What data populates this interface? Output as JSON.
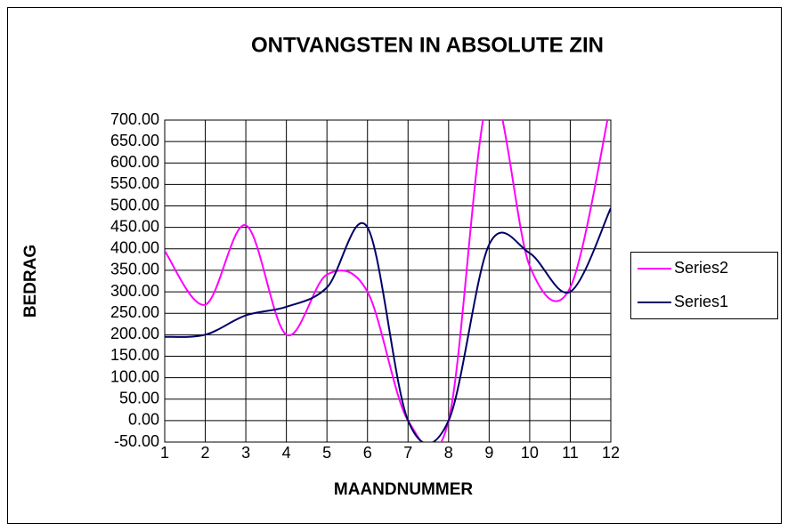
{
  "chart_data": {
    "type": "line",
    "title": "ONTVANGSTEN IN ABSOLUTE ZIN",
    "x_label": "MAANDNUMMER",
    "y_label": "BEDRAG",
    "x": [
      1,
      2,
      3,
      4,
      5,
      6,
      7,
      8,
      9,
      10,
      11,
      12
    ],
    "series": [
      {
        "name": "Series2",
        "color": "#ff00ff",
        "values": [
          395,
          270,
          455,
          200,
          340,
          300,
          0,
          0,
          760,
          360,
          310,
          740
        ]
      },
      {
        "name": "Series1",
        "color": "#000066",
        "values": [
          195,
          200,
          245,
          265,
          310,
          450,
          0,
          0,
          410,
          390,
          300,
          495
        ]
      }
    ],
    "xlim": [
      1,
      12
    ],
    "xticks": [
      1,
      2,
      3,
      4,
      5,
      6,
      7,
      8,
      9,
      10,
      11,
      12
    ],
    "ylim": [
      -50,
      700
    ],
    "yticks": [
      {
        "value": -50,
        "label": "-50.00"
      },
      {
        "value": 0,
        "label": "0.00"
      },
      {
        "value": 50,
        "label": "50.00"
      },
      {
        "value": 100,
        "label": "100.00"
      },
      {
        "value": 150,
        "label": "150.00"
      },
      {
        "value": 200,
        "label": "200.00"
      },
      {
        "value": 250,
        "label": "250.00"
      },
      {
        "value": 300,
        "label": "300.00"
      },
      {
        "value": 350,
        "label": "350.00"
      },
      {
        "value": 400,
        "label": "400.00"
      },
      {
        "value": 450,
        "label": "450.00"
      },
      {
        "value": 500,
        "label": "500.00"
      },
      {
        "value": 550,
        "label": "550.00"
      },
      {
        "value": 600,
        "label": "600.00"
      },
      {
        "value": 650,
        "label": "650.00"
      },
      {
        "value": 700,
        "label": "700.00"
      }
    ],
    "grid": true,
    "smooth": true,
    "legend": "right"
  }
}
